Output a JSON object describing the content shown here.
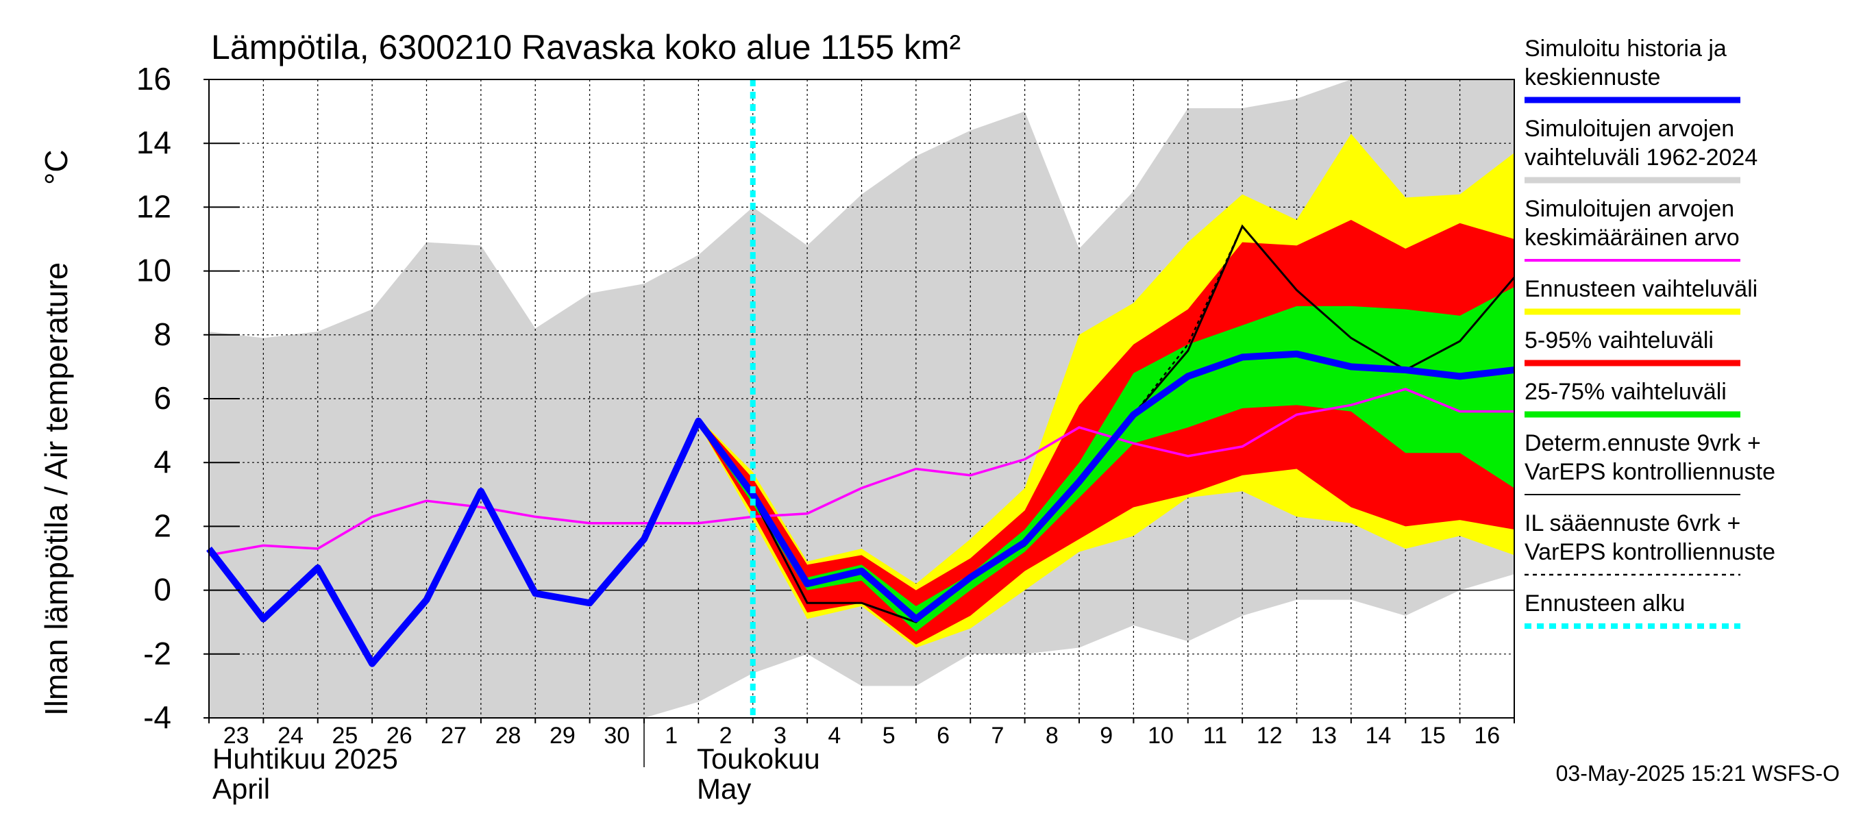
{
  "chart_data": {
    "type": "area",
    "title": "Lämpötila, 6300210 Ravaska koko alue 1155 km²",
    "ylabel_fi": "Ilman lämpötila / Air temperature",
    "ylabel_unit": "°C",
    "ylim": [
      -4,
      16
    ],
    "yticks": [
      -4,
      -2,
      0,
      2,
      4,
      6,
      8,
      10,
      12,
      14,
      16
    ],
    "xlim": [
      0,
      24
    ],
    "x_day_labels": [
      "23",
      "24",
      "25",
      "26",
      "27",
      "28",
      "29",
      "30",
      "1",
      "2",
      "3",
      "4",
      "5",
      "6",
      "7",
      "8",
      "9",
      "10",
      "11",
      "12",
      "13",
      "14",
      "15",
      "16"
    ],
    "month_labels": [
      {
        "fi": "Huhtikuu  2025",
        "en": "April"
      },
      {
        "fi": "Toukokuu",
        "en": "May"
      }
    ],
    "grid": true,
    "forecast_start_x": 10,
    "footer": "03-May-2025 15:21 WSFS-O",
    "colors": {
      "history": "#0000ff",
      "range_1962_2024": "#d3d3d3",
      "mean": "#ff00ff",
      "forecast_range": "#ffff00",
      "p5_95": "#ff0000",
      "p25_75": "#00ee00",
      "determ": "#000000",
      "forecast_start": "#00ffff"
    },
    "legend": [
      {
        "lines": [
          "Simuloitu historia ja",
          "keskiennuste"
        ],
        "key": "history",
        "style": "thick"
      },
      {
        "lines": [
          "Simuloitujen arvojen",
          "vaihteluväli 1962-2024"
        ],
        "key": "range_1962_2024",
        "style": "thick"
      },
      {
        "lines": [
          "Simuloitujen arvojen",
          "keskimääräinen arvo"
        ],
        "key": "mean",
        "style": "thin"
      },
      {
        "lines": [
          "Ennusteen vaihteluväli"
        ],
        "key": "forecast_range",
        "style": "thick"
      },
      {
        "lines": [
          "5-95% vaihteluväli"
        ],
        "key": "p5_95",
        "style": "thick"
      },
      {
        "lines": [
          "25-75% vaihteluväli"
        ],
        "key": "p25_75",
        "style": "thick"
      },
      {
        "lines": [
          "Determ.ennuste 9vrk +",
          "VarEPS kontrolliennuste"
        ],
        "key": "determ",
        "style": "thinline"
      },
      {
        "lines": [
          "IL sääennuste 6vrk  +",
          "  VarEPS kontrolliennuste"
        ],
        "key": "determ",
        "style": "dashed"
      },
      {
        "lines": [
          "Ennusteen alku"
        ],
        "key": "forecast_start",
        "style": "dotted"
      }
    ],
    "series": {
      "range_1962_2024": {
        "x": [
          0,
          1,
          2,
          3,
          4,
          5,
          6,
          7,
          8,
          9,
          10,
          11,
          12,
          13,
          14,
          15,
          16,
          17,
          18,
          19,
          20,
          21,
          22,
          23,
          24
        ],
        "upper": [
          8.1,
          7.9,
          8.1,
          8.8,
          10.9,
          10.8,
          8.2,
          9.3,
          9.6,
          10.5,
          12.0,
          10.8,
          12.4,
          13.6,
          14.4,
          15.0,
          10.7,
          12.5,
          15.1,
          15.1,
          15.4,
          16,
          16,
          16,
          16
        ],
        "lower": [
          -4.5,
          -4.5,
          -4.5,
          -4.5,
          -4.5,
          -4.5,
          -4.5,
          -4.5,
          -4.5,
          -3.5,
          -2.6,
          -2.0,
          -3.0,
          -3.0,
          -2.0,
          -2.0,
          -1.8,
          -1.1,
          -1.6,
          -0.8,
          -0.3,
          -0.3,
          -0.8,
          0.0,
          0.5
        ]
      },
      "mean": {
        "x": [
          0,
          1,
          2,
          3,
          4,
          5,
          6,
          7,
          8,
          9,
          10,
          11,
          12,
          13,
          14,
          15,
          16,
          17,
          18,
          19,
          20,
          21,
          22,
          23,
          24
        ],
        "y": [
          1.1,
          1.4,
          1.3,
          2.3,
          2.8,
          2.6,
          2.3,
          2.1,
          2.1,
          2.1,
          2.3,
          2.4,
          3.2,
          3.8,
          3.6,
          4.1,
          5.1,
          4.6,
          4.2,
          4.5,
          5.5,
          5.8,
          6.3,
          5.6,
          5.6
        ]
      },
      "forecast_range": {
        "x": [
          9,
          10,
          11,
          12,
          13,
          14,
          15,
          16,
          17,
          18,
          19,
          20,
          21,
          22,
          23,
          24
        ],
        "upper": [
          5.4,
          3.7,
          0.9,
          1.3,
          0.2,
          1.6,
          3.2,
          8.0,
          9.0,
          10.9,
          12.4,
          11.6,
          14.3,
          12.3,
          12.4,
          13.7
        ],
        "lower": [
          5.2,
          2.2,
          -0.9,
          -0.5,
          -1.8,
          -1.2,
          0.0,
          1.2,
          1.7,
          2.9,
          3.1,
          2.3,
          2.1,
          1.3,
          1.7,
          1.1
        ]
      },
      "p5_95": {
        "x": [
          9,
          10,
          11,
          12,
          13,
          14,
          15,
          16,
          17,
          18,
          19,
          20,
          21,
          22,
          23,
          24
        ],
        "upper": [
          5.4,
          3.5,
          0.8,
          1.1,
          0.0,
          1.0,
          2.5,
          5.8,
          7.7,
          8.8,
          10.9,
          10.8,
          11.6,
          10.7,
          11.5,
          11.0
        ],
        "lower": [
          5.2,
          2.4,
          -0.7,
          -0.4,
          -1.7,
          -0.8,
          0.6,
          1.6,
          2.6,
          3.0,
          3.6,
          3.8,
          2.6,
          2.0,
          2.2,
          1.9
        ]
      },
      "p25_75": {
        "x": [
          9,
          10,
          11,
          12,
          13,
          14,
          15,
          16,
          17,
          18,
          19,
          20,
          21,
          22,
          23,
          24
        ],
        "upper": [
          5.3,
          3.1,
          0.4,
          0.8,
          -0.5,
          0.5,
          1.9,
          4.0,
          6.8,
          7.7,
          8.3,
          8.9,
          8.9,
          8.8,
          8.6,
          9.5
        ],
        "lower": [
          5.2,
          2.7,
          0.0,
          0.3,
          -1.3,
          0.0,
          1.2,
          2.9,
          4.6,
          5.1,
          5.7,
          5.8,
          5.6,
          4.3,
          4.3,
          3.2
        ]
      },
      "history": {
        "x": [
          0,
          1,
          2,
          3,
          4,
          5,
          6,
          7,
          8,
          9,
          10,
          11,
          12,
          13,
          14,
          15,
          16,
          17,
          18,
          19,
          20,
          21,
          22,
          23,
          24
        ],
        "y": [
          1.3,
          -0.9,
          0.7,
          -2.3,
          -0.3,
          3.1,
          -0.1,
          -0.4,
          1.6,
          5.3,
          3.0,
          0.2,
          0.6,
          -0.9,
          0.4,
          1.5,
          3.4,
          5.5,
          6.7,
          7.3,
          7.4,
          7.0,
          6.9,
          6.7,
          6.9
        ]
      },
      "determ": {
        "x": [
          9,
          10,
          11,
          12,
          13,
          14,
          15,
          16,
          17,
          18,
          19,
          20,
          21,
          22,
          23,
          24
        ],
        "y": [
          5.3,
          2.9,
          -0.4,
          -0.4,
          -1.0,
          0.4,
          1.4,
          3.3,
          5.5,
          7.5,
          11.4,
          9.4,
          7.9,
          6.9,
          7.8,
          9.8
        ]
      },
      "il_forecast": {
        "x": [
          9,
          10,
          11,
          12,
          13,
          14,
          15,
          16,
          17,
          18,
          19
        ],
        "y": [
          5.3,
          2.9,
          -0.4,
          -0.4,
          -1.0,
          0.4,
          1.4,
          3.3,
          5.5,
          7.7,
          11.4
        ]
      }
    }
  }
}
